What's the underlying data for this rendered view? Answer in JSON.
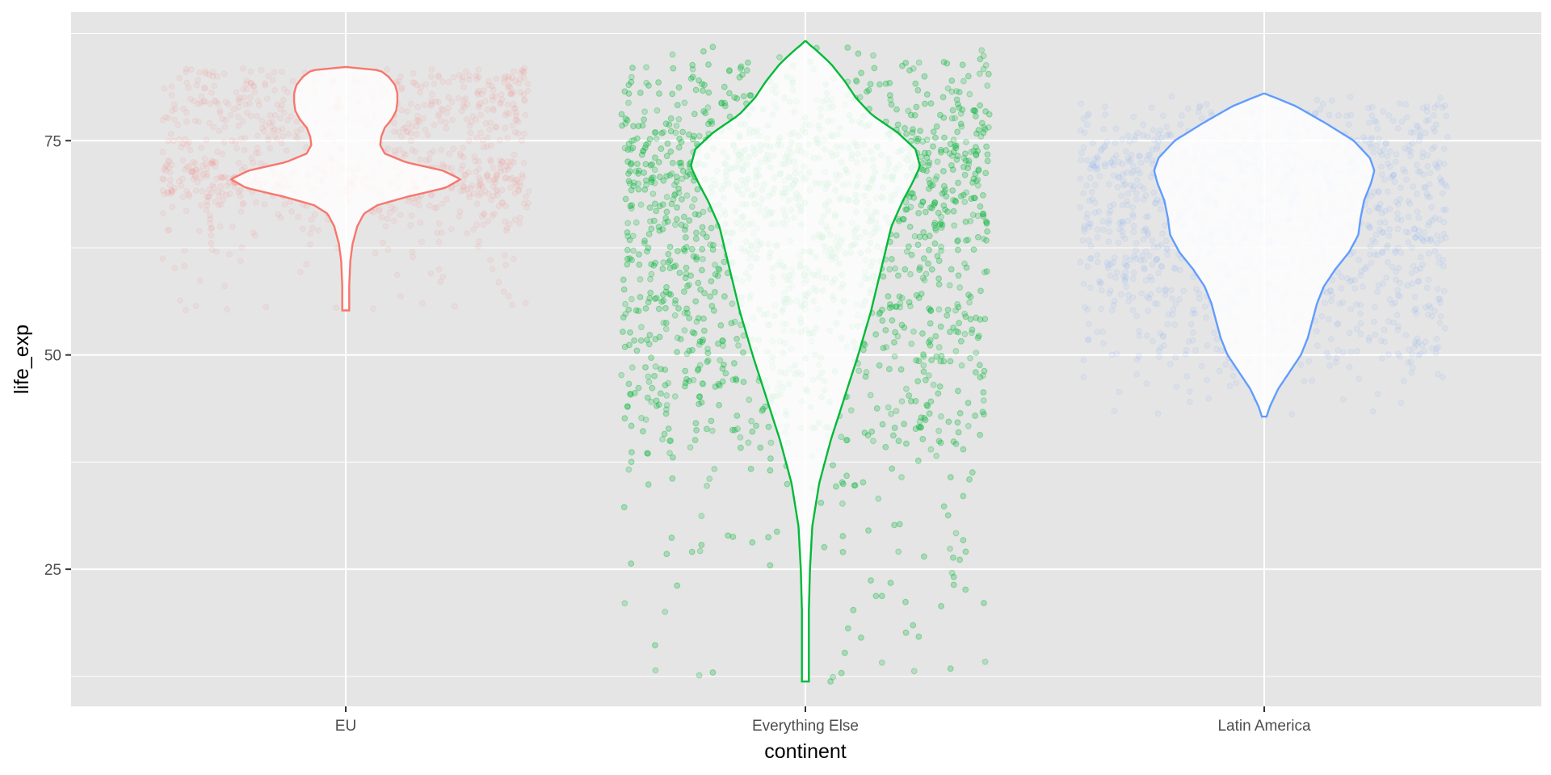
{
  "chart_data": {
    "type": "violin",
    "title": "",
    "xlabel": "continent",
    "ylabel": "life_exp",
    "ylim": [
      9,
      90
    ],
    "yticks": [
      25,
      50,
      75
    ],
    "y_minor_gridlines": [
      12.5,
      37.5,
      62.5,
      87.5
    ],
    "categories": [
      "EU",
      "Everything Else",
      "Latin America"
    ],
    "overlay": "jittered points, alpha 0.1",
    "series": [
      {
        "name": "EU",
        "color": "#F8766D",
        "min": 55.2,
        "max": 83.6,
        "points_n": 1100,
        "density": [
          [
            55.2,
            0.03
          ],
          [
            58,
            0.03
          ],
          [
            61,
            0.04
          ],
          [
            63,
            0.06
          ],
          [
            65,
            0.1
          ],
          [
            66.5,
            0.16
          ],
          [
            67.5,
            0.28
          ],
          [
            68.5,
            0.55
          ],
          [
            69.5,
            0.87
          ],
          [
            70.5,
            1.0
          ],
          [
            71.5,
            0.85
          ],
          [
            72.5,
            0.52
          ],
          [
            73.5,
            0.34
          ],
          [
            74.5,
            0.3
          ],
          [
            75.5,
            0.31
          ],
          [
            76.5,
            0.34
          ],
          [
            77.5,
            0.4
          ],
          [
            78.5,
            0.44
          ],
          [
            79.5,
            0.45
          ],
          [
            80.5,
            0.45
          ],
          [
            81.5,
            0.43
          ],
          [
            82.5,
            0.37
          ],
          [
            83.2,
            0.3
          ],
          [
            83.6,
            0.0
          ]
        ]
      },
      {
        "name": "Everything Else",
        "color": "#00BA38",
        "min": 11.9,
        "max": 86.6,
        "points_n": 6200,
        "density": [
          [
            11.9,
            0.03
          ],
          [
            16,
            0.03
          ],
          [
            20,
            0.03
          ],
          [
            25,
            0.04
          ],
          [
            30,
            0.06
          ],
          [
            35,
            0.12
          ],
          [
            40,
            0.22
          ],
          [
            45,
            0.34
          ],
          [
            50,
            0.46
          ],
          [
            55,
            0.57
          ],
          [
            60,
            0.66
          ],
          [
            65,
            0.75
          ],
          [
            68,
            0.85
          ],
          [
            70,
            0.93
          ],
          [
            72,
            1.0
          ],
          [
            74,
            0.96
          ],
          [
            76,
            0.8
          ],
          [
            78,
            0.58
          ],
          [
            80,
            0.44
          ],
          [
            82,
            0.34
          ],
          [
            84,
            0.22
          ],
          [
            85.5,
            0.1
          ],
          [
            86.6,
            0.0
          ]
        ]
      },
      {
        "name": "Latin America",
        "color": "#619CFF",
        "min": 42.8,
        "max": 80.5,
        "points_n": 1250,
        "density": [
          [
            42.8,
            0.02
          ],
          [
            44,
            0.05
          ],
          [
            46,
            0.12
          ],
          [
            48,
            0.22
          ],
          [
            50,
            0.32
          ],
          [
            52,
            0.38
          ],
          [
            54,
            0.42
          ],
          [
            56,
            0.46
          ],
          [
            58,
            0.52
          ],
          [
            60,
            0.62
          ],
          [
            62,
            0.74
          ],
          [
            64,
            0.82
          ],
          [
            66,
            0.84
          ],
          [
            68,
            0.87
          ],
          [
            70,
            0.93
          ],
          [
            71.5,
            0.96
          ],
          [
            73,
            0.92
          ],
          [
            75,
            0.78
          ],
          [
            77,
            0.54
          ],
          [
            79,
            0.28
          ],
          [
            80,
            0.1
          ],
          [
            80.5,
            0.0
          ]
        ]
      }
    ]
  }
}
